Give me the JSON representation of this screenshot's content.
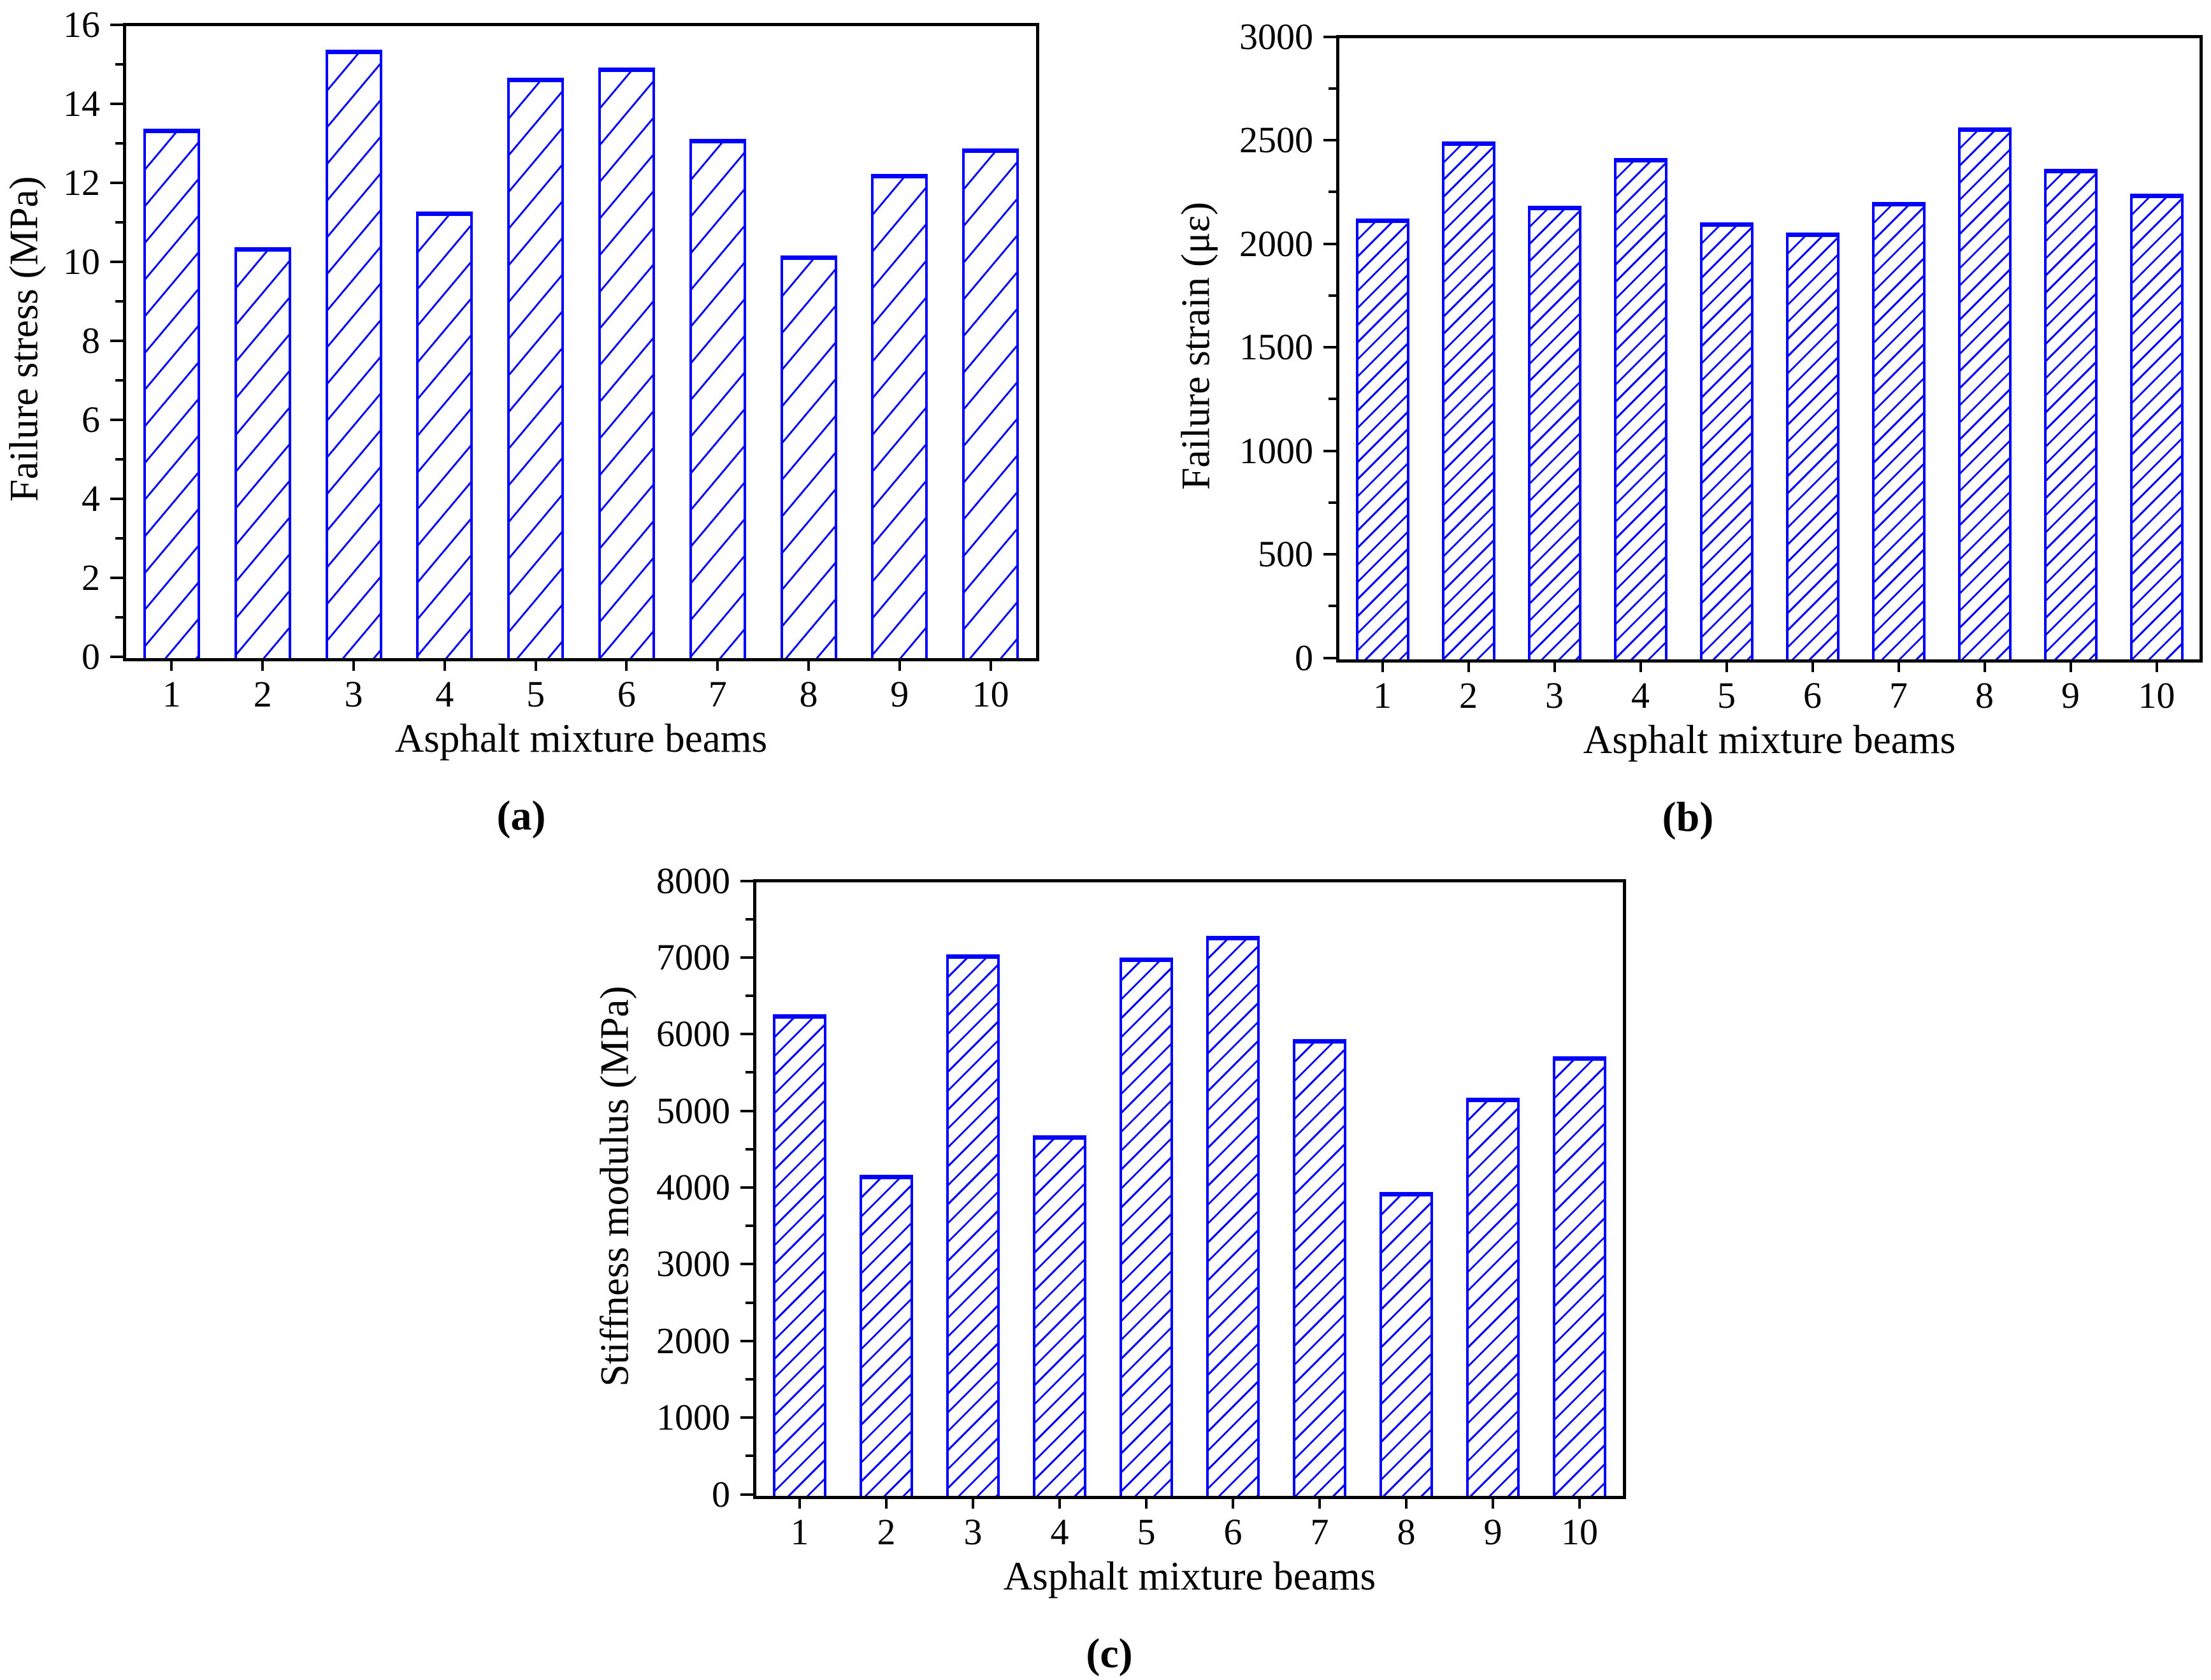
{
  "figure": {
    "background_color": "#ffffff",
    "axis_color": "#000000",
    "bar_edge_color": "#0000ff",
    "captions": {
      "a": "(a)",
      "b": "(b)",
      "c": "(c)"
    }
  },
  "chart_data": [
    {
      "id": "a",
      "type": "bar",
      "title": "",
      "xlabel": "Asphalt mixture beams",
      "ylabel": "Failure stress (MPa)",
      "caption": "(a)",
      "categories": [
        "1",
        "2",
        "3",
        "4",
        "5",
        "6",
        "7",
        "8",
        "9",
        "10"
      ],
      "values": [
        13.4,
        10.4,
        15.4,
        11.3,
        14.7,
        14.95,
        13.15,
        10.2,
        12.25,
        12.9
      ],
      "ylim": [
        0,
        16
      ],
      "yticks": [
        0,
        2,
        4,
        6,
        8,
        10,
        12,
        14,
        16
      ],
      "ytick_step": 2,
      "yminor_step": 1,
      "grid": false,
      "legend": false,
      "bar_color": "#0000ff",
      "hatch": "/"
    },
    {
      "id": "b",
      "type": "bar",
      "title": "",
      "xlabel": "Asphalt mixture beams",
      "ylabel": "Failure strain (με)",
      "caption": "(b)",
      "categories": [
        "1",
        "2",
        "3",
        "4",
        "5",
        "6",
        "7",
        "8",
        "9",
        "10"
      ],
      "values": [
        2130,
        2500,
        2190,
        2420,
        2110,
        2060,
        2210,
        2570,
        2370,
        2250
      ],
      "ylim": [
        0,
        3000
      ],
      "yticks": [
        0,
        500,
        1000,
        1500,
        2000,
        2500,
        3000
      ],
      "ytick_step": 500,
      "yminor_step": 250,
      "grid": false,
      "legend": false,
      "bar_color": "#0000ff",
      "hatch": "/"
    },
    {
      "id": "c",
      "type": "bar",
      "title": "",
      "xlabel": "Asphalt mixture beams",
      "ylabel": "Stiffness modulus (MPa)",
      "caption": "(c)",
      "categories": [
        "1",
        "2",
        "3",
        "4",
        "5",
        "6",
        "7",
        "8",
        "9",
        "10"
      ],
      "values": [
        6280,
        4190,
        7060,
        4700,
        7020,
        7300,
        5960,
        3960,
        5190,
        5730
      ],
      "ylim": [
        0,
        8000
      ],
      "yticks": [
        0,
        1000,
        2000,
        3000,
        4000,
        5000,
        6000,
        7000,
        8000
      ],
      "ytick_step": 1000,
      "yminor_step": 500,
      "grid": false,
      "legend": false,
      "bar_color": "#0000ff",
      "hatch": "/"
    }
  ]
}
